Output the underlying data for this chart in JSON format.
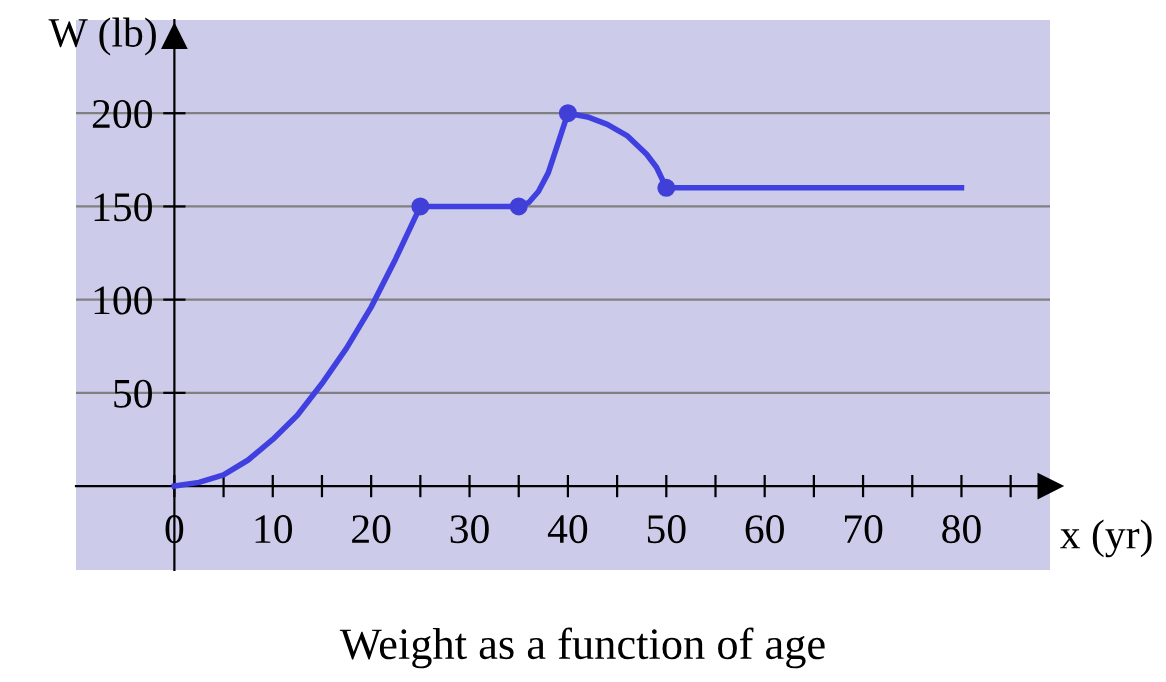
{
  "chart_data": {
    "type": "line",
    "title": "Weight as a function of age",
    "xlabel": "x (yr)",
    "ylabel": "W (lb)",
    "xlim": [
      -10,
      89
    ],
    "ylim": [
      -45,
      250
    ],
    "xticks": [
      {
        "value": 0,
        "label": "0"
      },
      {
        "value": 5,
        "label": null
      },
      10,
      {
        "value": 15,
        "label": null
      },
      20,
      {
        "value": 25,
        "label": null
      },
      30,
      {
        "value": 35,
        "label": null
      },
      40,
      {
        "value": 45,
        "label": null
      },
      50,
      {
        "value": 55,
        "label": null
      },
      60,
      {
        "value": 65,
        "label": null
      },
      70,
      {
        "value": 75,
        "label": null
      },
      80,
      {
        "value": 85,
        "label": null
      }
    ],
    "yticks": [
      50,
      100,
      150,
      200
    ],
    "grid": "y",
    "series": [
      {
        "color": "#4040e0",
        "marker": "none",
        "x": [
          0,
          2.5,
          5,
          7.5,
          10,
          12.5,
          15,
          17.5,
          20,
          22.5,
          25,
          35,
          36,
          37,
          38,
          39,
          40,
          42,
          44,
          46,
          48,
          49,
          50,
          80
        ],
        "values": [
          0,
          2,
          6,
          14,
          25,
          38,
          55,
          74,
          96,
          122,
          150,
          150,
          152,
          158,
          168,
          184,
          200,
          198,
          194,
          188,
          178,
          171,
          160,
          160
        ]
      },
      {
        "type": "scatter",
        "color": "#4040d8",
        "marker": "circle",
        "x": [
          25,
          35,
          40,
          50
        ],
        "values": [
          150,
          150,
          200,
          160
        ]
      }
    ]
  }
}
